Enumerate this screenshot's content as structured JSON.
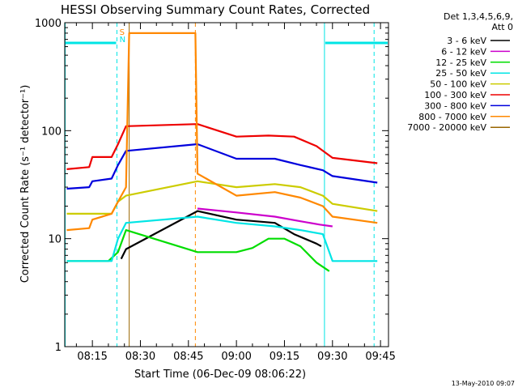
{
  "chart_data": {
    "type": "line",
    "title": "HESSI Observing Summary Count Rates, Corrected",
    "xlabel": "Start Time (06-Dec-09 08:06:22)",
    "ylabel": "Corrected Count Rate (s⁻¹ detector⁻¹)",
    "yscale": "log",
    "ylim": [
      1,
      1000
    ],
    "xlim": [
      "08:06:22",
      "09:47:30"
    ],
    "x_ticks": [
      "08:15",
      "08:30",
      "08:45",
      "09:00",
      "09:15",
      "09:30",
      "09:45"
    ],
    "y_ticks": [
      "1",
      "10",
      "100",
      "1000"
    ],
    "grid": false,
    "legend_position": "top-right",
    "legend_header": [
      "Det 1,3,4,5,6,9,",
      "Att 0"
    ],
    "footer_date": "13-May-2010 09:07",
    "markers": {
      "S_label": "S",
      "N_label": "N",
      "night_intervals": [
        [
          "08:06:22",
          "08:22:40"
        ],
        [
          "09:27:30",
          "09:47:30"
        ]
      ],
      "saa_interval": [
        "08:26:30",
        "08:47:10"
      ],
      "dashed_lines": [
        "08:22:40",
        "08:47:10",
        "09:43:00"
      ],
      "solid_lines": [
        "08:06:30",
        "08:26:30",
        "09:27:30"
      ],
      "bar_level": 800
    },
    "series": [
      {
        "name": "3 - 6 keV",
        "color": "#000000",
        "points": [
          [
            "08:24:00",
            6.5
          ],
          [
            "08:25:30",
            8
          ],
          [
            "08:47:50",
            18
          ],
          [
            "09:00",
            15
          ],
          [
            "09:12",
            14
          ],
          [
            "09:18",
            11
          ],
          [
            "09:25",
            9
          ],
          [
            "09:26:30",
            8.5
          ]
        ]
      },
      {
        "name": "6 - 12 keV",
        "color": "#cc00cc",
        "points": [
          [
            "08:47:50",
            19
          ],
          [
            "09:00",
            17.5
          ],
          [
            "09:12",
            16
          ],
          [
            "09:20",
            14.5
          ],
          [
            "09:26",
            13.5
          ],
          [
            "09:30",
            13
          ]
        ]
      },
      {
        "name": "12 - 25 keV",
        "color": "#00dd00",
        "points": [
          [
            "08:07",
            6.2
          ],
          [
            "08:20",
            6.2
          ],
          [
            "08:23",
            7.5
          ],
          [
            "08:25:30",
            12
          ],
          [
            "08:47:50",
            7.5
          ],
          [
            "09:00",
            7.5
          ],
          [
            "09:05",
            8.2
          ],
          [
            "09:10",
            10
          ],
          [
            "09:15",
            10
          ],
          [
            "09:20",
            8.5
          ],
          [
            "09:25",
            6
          ],
          [
            "09:29",
            5
          ]
        ]
      },
      {
        "name": "25 - 50 keV",
        "color": "#00e5e5",
        "points": [
          [
            "08:07",
            6.2
          ],
          [
            "08:21",
            6.2
          ],
          [
            "08:23",
            10
          ],
          [
            "08:25:30",
            14
          ],
          [
            "08:47:50",
            16
          ],
          [
            "09:00",
            14
          ],
          [
            "09:12",
            13
          ],
          [
            "09:20",
            12
          ],
          [
            "09:27",
            11
          ],
          [
            "09:30",
            6.2
          ],
          [
            "09:44",
            6.2
          ]
        ]
      },
      {
        "name": "50 - 100 keV",
        "color": "#cccc00",
        "points": [
          [
            "08:07",
            17
          ],
          [
            "08:21",
            17
          ],
          [
            "08:23",
            22
          ],
          [
            "08:25:30",
            25
          ],
          [
            "08:47:50",
            34
          ],
          [
            "09:00",
            30
          ],
          [
            "09:12",
            32
          ],
          [
            "09:20",
            30
          ],
          [
            "09:27",
            25
          ],
          [
            "09:30",
            21
          ],
          [
            "09:44",
            18
          ]
        ]
      },
      {
        "name": "100 - 300 keV",
        "color": "#ee0000",
        "points": [
          [
            "08:07",
            44
          ],
          [
            "08:14",
            46
          ],
          [
            "08:15",
            57
          ],
          [
            "08:21",
            57
          ],
          [
            "08:23",
            75
          ],
          [
            "08:25:30",
            110
          ],
          [
            "08:47:50",
            115
          ],
          [
            "09:00",
            88
          ],
          [
            "09:10",
            90
          ],
          [
            "09:18",
            88
          ],
          [
            "09:25",
            72
          ],
          [
            "09:30",
            56
          ],
          [
            "09:44",
            50
          ]
        ]
      },
      {
        "name": "300 - 800 keV",
        "color": "#0000dd",
        "points": [
          [
            "08:07",
            29
          ],
          [
            "08:14",
            30
          ],
          [
            "08:15",
            34
          ],
          [
            "08:21",
            36
          ],
          [
            "08:23",
            48
          ],
          [
            "08:25:30",
            65
          ],
          [
            "08:47:50",
            75
          ],
          [
            "09:00",
            55
          ],
          [
            "09:12",
            55
          ],
          [
            "09:20",
            48
          ],
          [
            "09:27",
            43
          ],
          [
            "09:30",
            38
          ],
          [
            "09:44",
            33
          ]
        ]
      },
      {
        "name": "800 - 7000 keV",
        "color": "#ff8800",
        "points": [
          [
            "08:07",
            12
          ],
          [
            "08:14",
            12.5
          ],
          [
            "08:15",
            15
          ],
          [
            "08:21",
            17
          ],
          [
            "08:23",
            22
          ],
          [
            "08:25:30",
            30
          ],
          [
            "08:26:30",
            800
          ],
          [
            "08:47:10",
            800
          ],
          [
            "08:47:50",
            40
          ],
          [
            "09:00",
            25
          ],
          [
            "09:12",
            27
          ],
          [
            "09:20",
            24
          ],
          [
            "09:27",
            20
          ],
          [
            "09:30",
            16
          ],
          [
            "09:44",
            14
          ]
        ]
      },
      {
        "name": "7000 - 20000 keV",
        "color": "#996600",
        "points": []
      }
    ]
  }
}
